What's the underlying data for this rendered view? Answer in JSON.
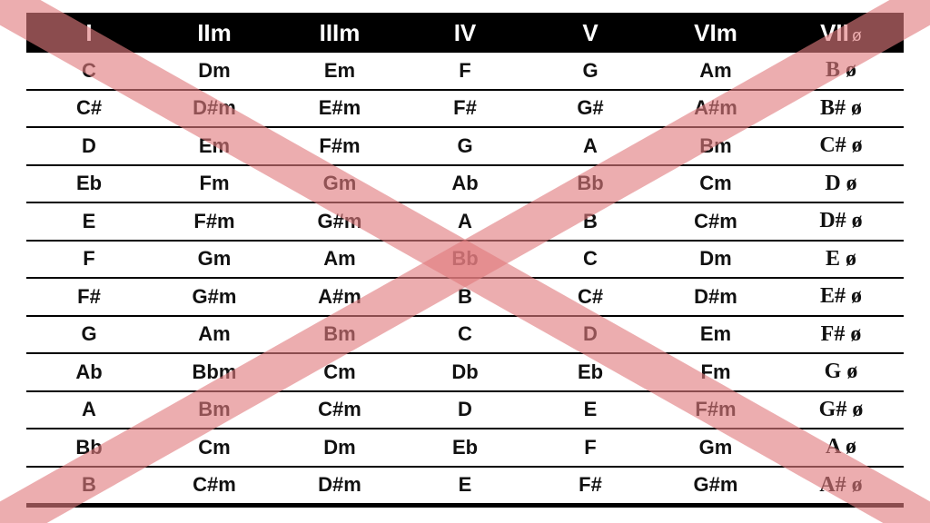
{
  "header": {
    "columns": [
      "I",
      "IIm",
      "IIIm",
      "IV",
      "V",
      "VIm",
      "VII"
    ],
    "dim_symbol": "ø"
  },
  "rows": [
    [
      "C",
      "Dm",
      "Em",
      "F",
      "G",
      "Am",
      "B ø"
    ],
    [
      "C#",
      "D#m",
      "E#m",
      "F#",
      "G#",
      "A#m",
      "B# ø"
    ],
    [
      "D",
      "Em",
      "F#m",
      "G",
      "A",
      "Bm",
      "C# ø"
    ],
    [
      "Eb",
      "Fm",
      "Gm",
      "Ab",
      "Bb",
      "Cm",
      "D ø"
    ],
    [
      "E",
      "F#m",
      "G#m",
      "A",
      "B",
      "C#m",
      "D# ø"
    ],
    [
      "F",
      "Gm",
      "Am",
      "Bb",
      "C",
      "Dm",
      "E ø"
    ],
    [
      "F#",
      "G#m",
      "A#m",
      "B",
      "C#",
      "D#m",
      "E# ø"
    ],
    [
      "G",
      "Am",
      "Bm",
      "C",
      "D",
      "Em",
      "F# ø"
    ],
    [
      "Ab",
      "Bbm",
      "Cm",
      "Db",
      "Eb",
      "Fm",
      "G ø"
    ],
    [
      "A",
      "Bm",
      "C#m",
      "D",
      "E",
      "F#m",
      "G# ø"
    ],
    [
      "Bb",
      "Cm",
      "Dm",
      "Eb",
      "F",
      "Gm",
      "A ø"
    ],
    [
      "B",
      "C#m",
      "D#m",
      "E",
      "F#",
      "G#m",
      "A# ø"
    ]
  ],
  "colors": {
    "header_background": "#000000",
    "header_text": "#ffffff",
    "row_rule": "#000000",
    "cross_stroke": "#e07a7e"
  }
}
